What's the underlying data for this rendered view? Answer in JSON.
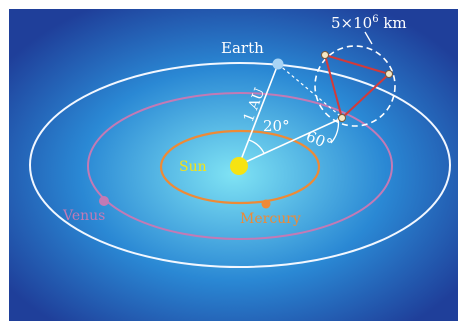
{
  "labels": {
    "earth": "Earth",
    "sun": "Sun",
    "mercury": "Mercury",
    "venus": "Venus",
    "distance": "1 AU",
    "angle_small": "20°",
    "angle_large": "60°",
    "size_base": "5×10",
    "size_exp": "6",
    "size_unit": " km"
  },
  "colors": {
    "background_glow": "#7fe3f4",
    "background_mid": "#2a88d4",
    "background_edge": "#1f3f9a",
    "earth_orbit": "#f2f7ff",
    "venus_orbit": "#c37ab5",
    "mercury_orbit": "#ee8a36",
    "sun": "#f6e313",
    "earth_dot": "#a8d4f5",
    "formation": "#d23a3a",
    "label_white": "#ffffff",
    "label_sun": "#f6e313",
    "label_mercury": "#ee8a36",
    "label_venus": "#c37ab5"
  }
}
